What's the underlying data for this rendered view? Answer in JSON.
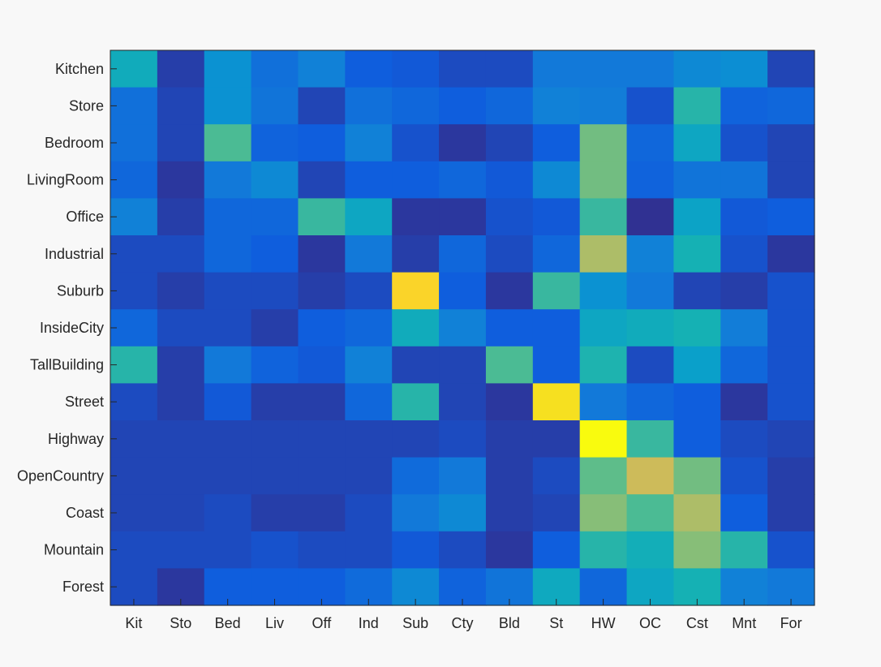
{
  "chart_data": {
    "type": "heatmap",
    "title": "",
    "xlabel": "",
    "ylabel": "",
    "x_tick_labels": [
      "Kit",
      "Sto",
      "Bed",
      "Liv",
      "Off",
      "Ind",
      "Sub",
      "Cty",
      "Bld",
      "St",
      "HW",
      "OC",
      "Cst",
      "Mnt",
      "For"
    ],
    "y_tick_labels": [
      "Kitchen",
      "Store",
      "Bedroom",
      "LivingRoom",
      "Office",
      "Industrial",
      "Suburb",
      "InsideCity",
      "TallBuilding",
      "Street",
      "Highway",
      "OpenCountry",
      "Coast",
      "Mountain",
      "Forest"
    ],
    "colormap": "parula",
    "color_limits": [
      0,
      0.75
    ],
    "matrix": [
      [
        0.28,
        0.03,
        0.2,
        0.12,
        0.16,
        0.08,
        0.07,
        0.05,
        0.05,
        0.14,
        0.14,
        0.14,
        0.18,
        0.19,
        0.04
      ],
      [
        0.12,
        0.04,
        0.2,
        0.13,
        0.04,
        0.12,
        0.1,
        0.08,
        0.1,
        0.16,
        0.15,
        0.06,
        0.32,
        0.09,
        0.1
      ],
      [
        0.12,
        0.04,
        0.36,
        0.09,
        0.08,
        0.16,
        0.06,
        0.02,
        0.04,
        0.08,
        0.4,
        0.1,
        0.26,
        0.06,
        0.04
      ],
      [
        0.1,
        0.02,
        0.14,
        0.18,
        0.04,
        0.08,
        0.08,
        0.1,
        0.07,
        0.18,
        0.4,
        0.09,
        0.13,
        0.13,
        0.04
      ],
      [
        0.16,
        0.03,
        0.1,
        0.1,
        0.34,
        0.26,
        0.02,
        0.02,
        0.06,
        0.07,
        0.34,
        0.01,
        0.25,
        0.07,
        0.08
      ],
      [
        0.05,
        0.05,
        0.1,
        0.08,
        0.02,
        0.14,
        0.03,
        0.1,
        0.05,
        0.1,
        0.46,
        0.16,
        0.3,
        0.06,
        0.02
      ],
      [
        0.05,
        0.03,
        0.05,
        0.05,
        0.03,
        0.05,
        0.62,
        0.08,
        0.02,
        0.34,
        0.2,
        0.14,
        0.04,
        0.03,
        0.06
      ],
      [
        0.1,
        0.05,
        0.05,
        0.03,
        0.08,
        0.1,
        0.28,
        0.16,
        0.08,
        0.08,
        0.26,
        0.28,
        0.3,
        0.15,
        0.06
      ],
      [
        0.32,
        0.03,
        0.14,
        0.09,
        0.07,
        0.16,
        0.04,
        0.04,
        0.36,
        0.08,
        0.31,
        0.05,
        0.24,
        0.1,
        0.06
      ],
      [
        0.05,
        0.03,
        0.07,
        0.03,
        0.03,
        0.1,
        0.32,
        0.04,
        0.02,
        0.66,
        0.14,
        0.1,
        0.08,
        0.02,
        0.06
      ],
      [
        0.04,
        0.04,
        0.04,
        0.04,
        0.04,
        0.04,
        0.04,
        0.05,
        0.03,
        0.03,
        0.75,
        0.34,
        0.08,
        0.05,
        0.04
      ],
      [
        0.04,
        0.04,
        0.04,
        0.04,
        0.04,
        0.04,
        0.11,
        0.14,
        0.03,
        0.05,
        0.38,
        0.5,
        0.4,
        0.06,
        0.03
      ],
      [
        0.04,
        0.04,
        0.05,
        0.03,
        0.03,
        0.05,
        0.14,
        0.18,
        0.03,
        0.04,
        0.42,
        0.36,
        0.46,
        0.08,
        0.03
      ],
      [
        0.05,
        0.05,
        0.05,
        0.06,
        0.05,
        0.05,
        0.07,
        0.05,
        0.02,
        0.08,
        0.32,
        0.29,
        0.42,
        0.32,
        0.06
      ],
      [
        0.05,
        0.02,
        0.08,
        0.08,
        0.08,
        0.11,
        0.18,
        0.09,
        0.13,
        0.27,
        0.1,
        0.26,
        0.3,
        0.16,
        0.14
      ]
    ]
  }
}
